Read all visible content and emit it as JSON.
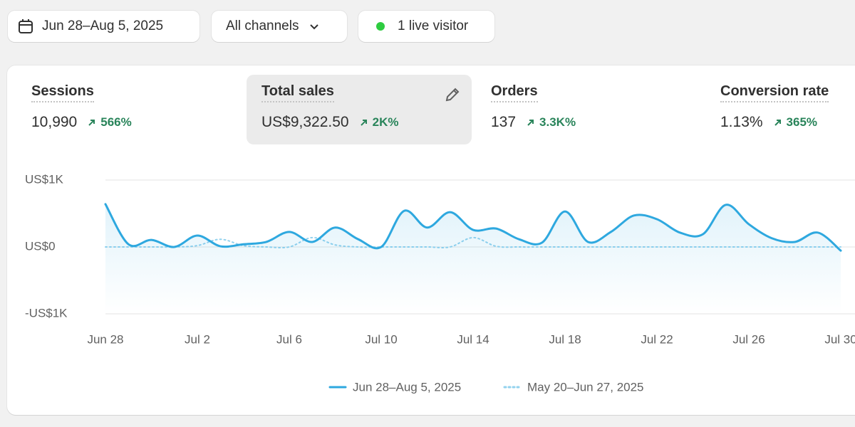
{
  "toolbar": {
    "date_range": "Jun 28–Aug 5, 2025",
    "channels": "All channels",
    "live": "1 live visitor"
  },
  "metrics": [
    {
      "label": "Sessions",
      "value": "10,990",
      "change": "566%"
    },
    {
      "label": "Total sales",
      "value": "US$9,322.50",
      "change": "2K%"
    },
    {
      "label": "Orders",
      "value": "137",
      "change": "3.3K%"
    },
    {
      "label": "Conversion rate",
      "value": "1.13%",
      "change": "365%"
    }
  ],
  "chart_data": {
    "type": "line",
    "categories": [
      "Jun 28",
      null,
      null,
      null,
      "Jul 2",
      null,
      null,
      null,
      "Jul 6",
      null,
      null,
      null,
      "Jul 10",
      null,
      null,
      null,
      "Jul 14",
      null,
      null,
      null,
      "Jul 18",
      null,
      null,
      null,
      "Jul 22",
      null,
      null,
      null,
      "Jul 26",
      null,
      null,
      null,
      "Jul 30"
    ],
    "series": [
      {
        "name": "Jun 28–Aug 5, 2025",
        "color": "#2ea8df",
        "style": "solid",
        "values": [
          640,
          40,
          105,
          0,
          170,
          10,
          40,
          75,
          225,
          75,
          290,
          115,
          0,
          540,
          290,
          520,
          255,
          275,
          115,
          65,
          530,
          75,
          225,
          470,
          415,
          215,
          190,
          630,
          340,
          130,
          75,
          215,
          -55
        ]
      },
      {
        "name": "May 20–Jun 27, 2025",
        "color": "#93d2ee",
        "style": "dotted",
        "values": [
          0,
          0,
          0,
          0,
          20,
          115,
          20,
          0,
          0,
          140,
          30,
          0,
          0,
          0,
          0,
          0,
          140,
          10,
          0,
          0,
          0,
          0,
          0,
          0,
          0,
          0,
          0,
          0,
          0,
          0,
          0,
          0,
          0
        ]
      }
    ],
    "ylim": [
      -1000,
      1000
    ],
    "yticks": [
      {
        "value": 1000,
        "label": "US$1K"
      },
      {
        "value": 0,
        "label": "US$0"
      },
      {
        "value": -1000,
        "label": "-US$1K"
      }
    ],
    "grid": true
  }
}
